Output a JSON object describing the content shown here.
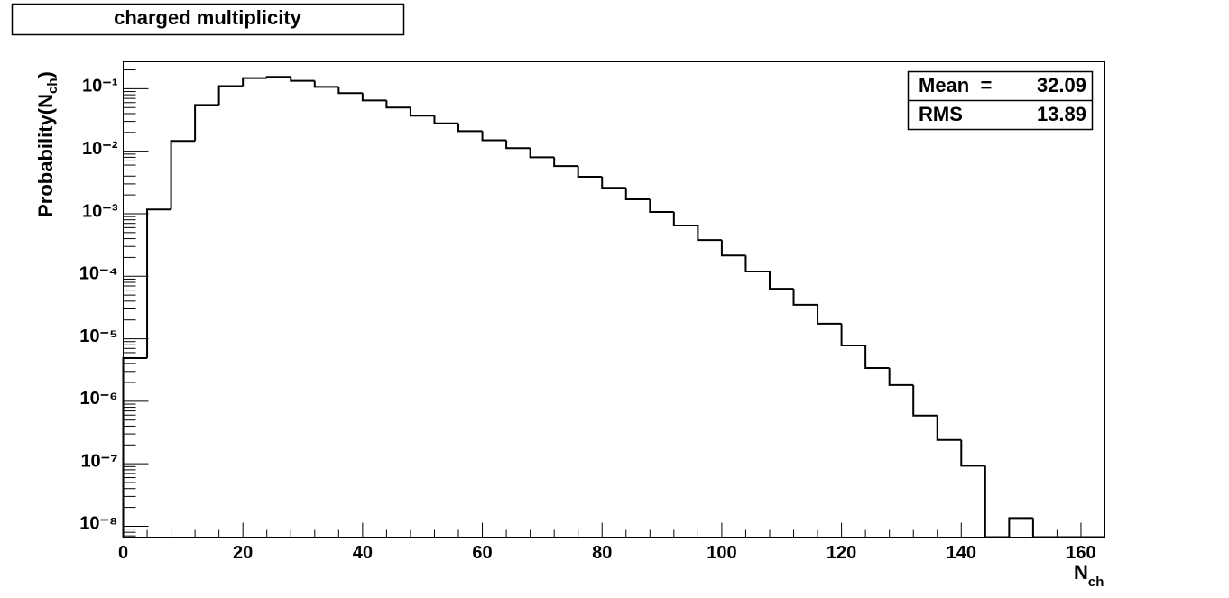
{
  "chart_data": {
    "type": "histogram",
    "title": "charged multiplicity",
    "xlabel": [
      "N",
      "ch"
    ],
    "ylabel": [
      "Probability(N",
      "ch",
      ")"
    ],
    "bins": [
      0,
      4,
      8,
      12,
      16,
      20,
      24,
      28,
      32,
      36,
      40,
      44,
      48,
      52,
      56,
      60,
      64,
      68,
      72,
      76,
      80,
      84,
      88,
      92,
      96,
      100,
      104,
      108,
      112,
      116,
      120,
      124,
      128,
      132,
      136,
      140,
      144,
      148,
      152,
      156,
      160,
      164
    ],
    "values": [
      4.9e-06,
      0.00117,
      0.0146,
      0.055,
      0.11,
      0.148,
      0.155,
      0.134,
      0.107,
      0.085,
      0.065,
      0.05,
      0.037,
      0.028,
      0.021,
      0.015,
      0.0112,
      0.008,
      0.0058,
      0.0039,
      0.0026,
      0.0017,
      0.00107,
      0.00065,
      0.00038,
      0.000215,
      0.000119,
      6.3e-05,
      3.5e-05,
      1.74e-05,
      7.8e-06,
      3.4e-06,
      1.82e-06,
      5.9e-07,
      2.4e-07,
      9.3e-08,
      0,
      1.35e-08,
      0,
      0,
      0
    ],
    "color": "#000000",
    "xlim": [
      0,
      164
    ],
    "xticks": [
      0,
      20,
      40,
      60,
      80,
      100,
      120,
      140,
      160
    ],
    "ylim": [
      6.7e-09,
      0.27
    ],
    "log_y": true,
    "yticks": [
      {
        "value": 1e-08,
        "label": "10⁻⁸"
      },
      {
        "value": 1e-07,
        "label": "10⁻⁷"
      },
      {
        "value": 1e-06,
        "label": "10⁻⁶"
      },
      {
        "value": 1e-05,
        "label": "10⁻⁵"
      },
      {
        "value": 0.0001,
        "label": "10⁻⁴"
      },
      {
        "value": 0.001,
        "label": "10⁻³"
      },
      {
        "value": 0.01,
        "label": "10⁻²"
      },
      {
        "value": 0.1,
        "label": "10⁻¹"
      }
    ],
    "stats": [
      {
        "name": "Mean  =",
        "value": 32.09
      },
      {
        "name": "RMS",
        "value": 13.89
      }
    ]
  }
}
